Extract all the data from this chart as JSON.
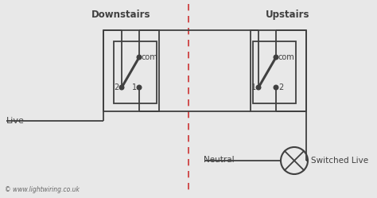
{
  "background_color": "#e8e8e8",
  "line_color": "#404040",
  "dashed_line_color": "#cc3333",
  "downstairs_label": "Downstairs",
  "upstairs_label": "Upstairs",
  "live_label": "Live",
  "neutral_label": "Neutral",
  "switched_live_label": "Switched Live",
  "copyright_label": "© www.lightwiring.co.uk",
  "com_label": "com",
  "switch1_labels": [
    "2",
    "1"
  ],
  "switch2_labels": [
    "1",
    "2"
  ],
  "figsize": [
    4.74,
    2.49
  ],
  "dpi": 100
}
